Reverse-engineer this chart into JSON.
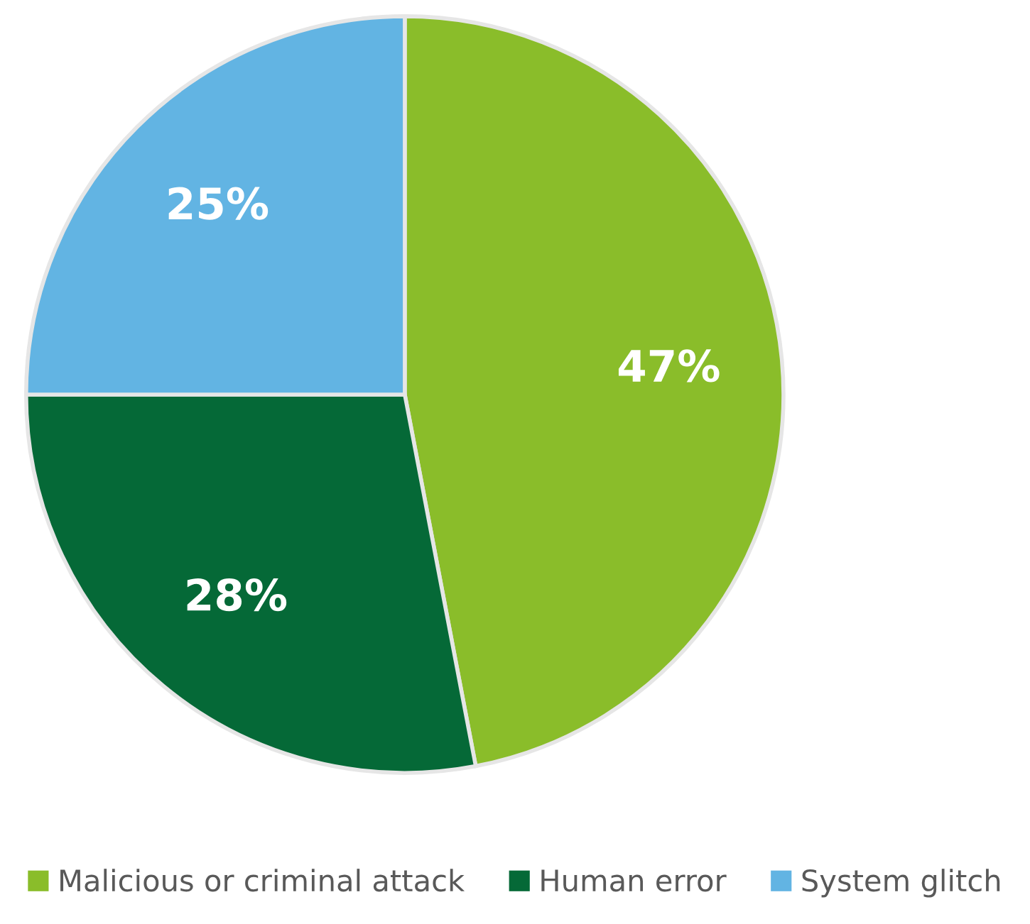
{
  "chart_data": {
    "type": "pie",
    "categories": [
      "Malicious or criminal attack",
      "Human error",
      "System glitch"
    ],
    "values": [
      47,
      28,
      25
    ],
    "colors": [
      "#8abd2a",
      "#056937",
      "#62b4e3"
    ],
    "value_labels": [
      "47%",
      "28%",
      "25%"
    ],
    "legend": "bottom"
  }
}
